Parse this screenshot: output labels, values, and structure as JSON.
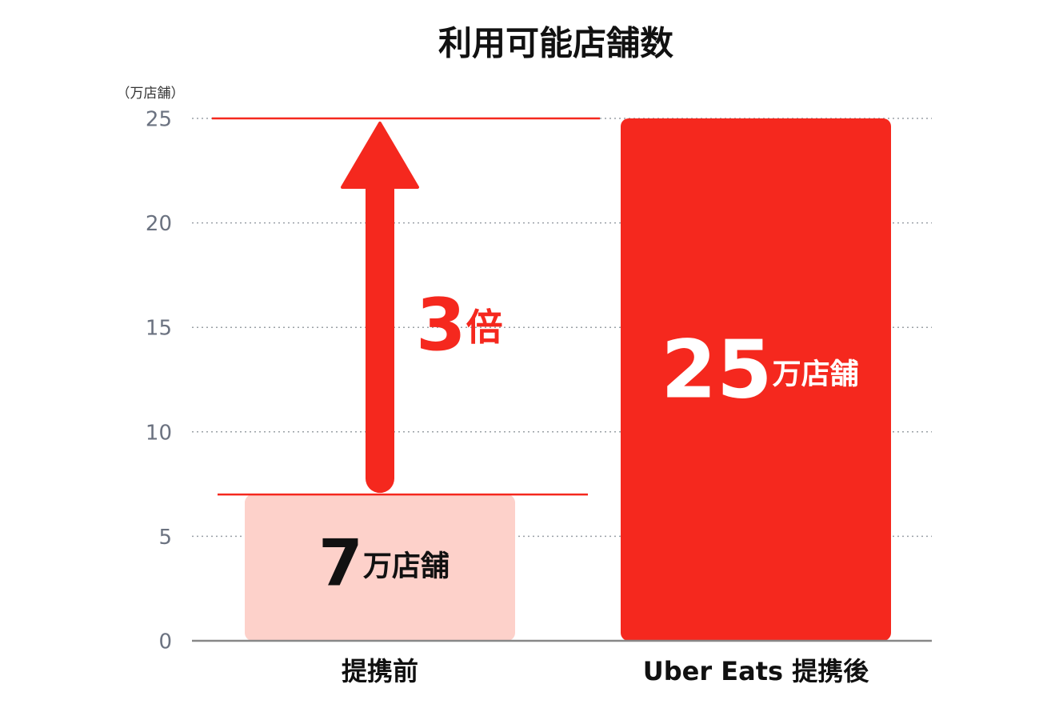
{
  "chart_data": {
    "type": "bar",
    "title": "利用可能店舗数",
    "y_unit_label": "（万店舗）",
    "categories": [
      "提携前",
      "Uber Eats 提携後"
    ],
    "values": [
      7,
      25
    ],
    "value_labels": [
      "7万店舗",
      "25万店舗"
    ],
    "colors": [
      "#fdd1ca",
      "#f5281e"
    ],
    "label_colors": [
      "#111111",
      "#ffffff"
    ],
    "ylim": [
      0,
      25
    ],
    "yticks": [
      0,
      5,
      10,
      15,
      20,
      25
    ],
    "grid": true,
    "annotation": "3倍",
    "annotation_color": "#f5281e"
  }
}
